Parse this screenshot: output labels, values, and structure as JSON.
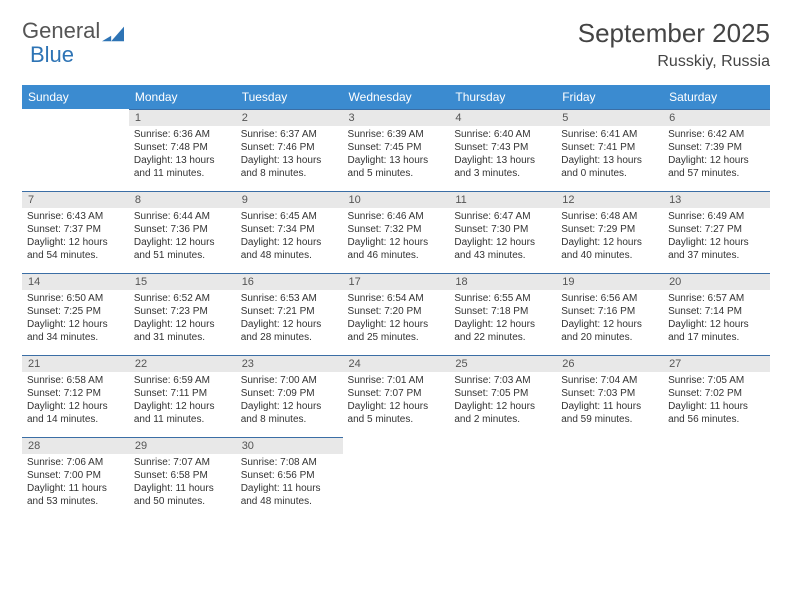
{
  "logo": {
    "text1": "General",
    "text2": "Blue"
  },
  "title": "September 2025",
  "location": "Russkiy, Russia",
  "weekdays": [
    "Sunday",
    "Monday",
    "Tuesday",
    "Wednesday",
    "Thursday",
    "Friday",
    "Saturday"
  ],
  "colors": {
    "header_bg": "#3b8bd0",
    "header_text": "#ffffff",
    "daynum_bg": "#e8e8e8",
    "border": "#3b6ea5",
    "logo_blue": "#2e74b5"
  },
  "weeks": [
    [
      {
        "day": "",
        "lines": []
      },
      {
        "day": "1",
        "lines": [
          "Sunrise: 6:36 AM",
          "Sunset: 7:48 PM",
          "Daylight: 13 hours and 11 minutes."
        ]
      },
      {
        "day": "2",
        "lines": [
          "Sunrise: 6:37 AM",
          "Sunset: 7:46 PM",
          "Daylight: 13 hours and 8 minutes."
        ]
      },
      {
        "day": "3",
        "lines": [
          "Sunrise: 6:39 AM",
          "Sunset: 7:45 PM",
          "Daylight: 13 hours and 5 minutes."
        ]
      },
      {
        "day": "4",
        "lines": [
          "Sunrise: 6:40 AM",
          "Sunset: 7:43 PM",
          "Daylight: 13 hours and 3 minutes."
        ]
      },
      {
        "day": "5",
        "lines": [
          "Sunrise: 6:41 AM",
          "Sunset: 7:41 PM",
          "Daylight: 13 hours and 0 minutes."
        ]
      },
      {
        "day": "6",
        "lines": [
          "Sunrise: 6:42 AM",
          "Sunset: 7:39 PM",
          "Daylight: 12 hours and 57 minutes."
        ]
      }
    ],
    [
      {
        "day": "7",
        "lines": [
          "Sunrise: 6:43 AM",
          "Sunset: 7:37 PM",
          "Daylight: 12 hours and 54 minutes."
        ]
      },
      {
        "day": "8",
        "lines": [
          "Sunrise: 6:44 AM",
          "Sunset: 7:36 PM",
          "Daylight: 12 hours and 51 minutes."
        ]
      },
      {
        "day": "9",
        "lines": [
          "Sunrise: 6:45 AM",
          "Sunset: 7:34 PM",
          "Daylight: 12 hours and 48 minutes."
        ]
      },
      {
        "day": "10",
        "lines": [
          "Sunrise: 6:46 AM",
          "Sunset: 7:32 PM",
          "Daylight: 12 hours and 46 minutes."
        ]
      },
      {
        "day": "11",
        "lines": [
          "Sunrise: 6:47 AM",
          "Sunset: 7:30 PM",
          "Daylight: 12 hours and 43 minutes."
        ]
      },
      {
        "day": "12",
        "lines": [
          "Sunrise: 6:48 AM",
          "Sunset: 7:29 PM",
          "Daylight: 12 hours and 40 minutes."
        ]
      },
      {
        "day": "13",
        "lines": [
          "Sunrise: 6:49 AM",
          "Sunset: 7:27 PM",
          "Daylight: 12 hours and 37 minutes."
        ]
      }
    ],
    [
      {
        "day": "14",
        "lines": [
          "Sunrise: 6:50 AM",
          "Sunset: 7:25 PM",
          "Daylight: 12 hours and 34 minutes."
        ]
      },
      {
        "day": "15",
        "lines": [
          "Sunrise: 6:52 AM",
          "Sunset: 7:23 PM",
          "Daylight: 12 hours and 31 minutes."
        ]
      },
      {
        "day": "16",
        "lines": [
          "Sunrise: 6:53 AM",
          "Sunset: 7:21 PM",
          "Daylight: 12 hours and 28 minutes."
        ]
      },
      {
        "day": "17",
        "lines": [
          "Sunrise: 6:54 AM",
          "Sunset: 7:20 PM",
          "Daylight: 12 hours and 25 minutes."
        ]
      },
      {
        "day": "18",
        "lines": [
          "Sunrise: 6:55 AM",
          "Sunset: 7:18 PM",
          "Daylight: 12 hours and 22 minutes."
        ]
      },
      {
        "day": "19",
        "lines": [
          "Sunrise: 6:56 AM",
          "Sunset: 7:16 PM",
          "Daylight: 12 hours and 20 minutes."
        ]
      },
      {
        "day": "20",
        "lines": [
          "Sunrise: 6:57 AM",
          "Sunset: 7:14 PM",
          "Daylight: 12 hours and 17 minutes."
        ]
      }
    ],
    [
      {
        "day": "21",
        "lines": [
          "Sunrise: 6:58 AM",
          "Sunset: 7:12 PM",
          "Daylight: 12 hours and 14 minutes."
        ]
      },
      {
        "day": "22",
        "lines": [
          "Sunrise: 6:59 AM",
          "Sunset: 7:11 PM",
          "Daylight: 12 hours and 11 minutes."
        ]
      },
      {
        "day": "23",
        "lines": [
          "Sunrise: 7:00 AM",
          "Sunset: 7:09 PM",
          "Daylight: 12 hours and 8 minutes."
        ]
      },
      {
        "day": "24",
        "lines": [
          "Sunrise: 7:01 AM",
          "Sunset: 7:07 PM",
          "Daylight: 12 hours and 5 minutes."
        ]
      },
      {
        "day": "25",
        "lines": [
          "Sunrise: 7:03 AM",
          "Sunset: 7:05 PM",
          "Daylight: 12 hours and 2 minutes."
        ]
      },
      {
        "day": "26",
        "lines": [
          "Sunrise: 7:04 AM",
          "Sunset: 7:03 PM",
          "Daylight: 11 hours and 59 minutes."
        ]
      },
      {
        "day": "27",
        "lines": [
          "Sunrise: 7:05 AM",
          "Sunset: 7:02 PM",
          "Daylight: 11 hours and 56 minutes."
        ]
      }
    ],
    [
      {
        "day": "28",
        "lines": [
          "Sunrise: 7:06 AM",
          "Sunset: 7:00 PM",
          "Daylight: 11 hours and 53 minutes."
        ]
      },
      {
        "day": "29",
        "lines": [
          "Sunrise: 7:07 AM",
          "Sunset: 6:58 PM",
          "Daylight: 11 hours and 50 minutes."
        ]
      },
      {
        "day": "30",
        "lines": [
          "Sunrise: 7:08 AM",
          "Sunset: 6:56 PM",
          "Daylight: 11 hours and 48 minutes."
        ]
      },
      {
        "day": "",
        "lines": []
      },
      {
        "day": "",
        "lines": []
      },
      {
        "day": "",
        "lines": []
      },
      {
        "day": "",
        "lines": []
      }
    ]
  ]
}
